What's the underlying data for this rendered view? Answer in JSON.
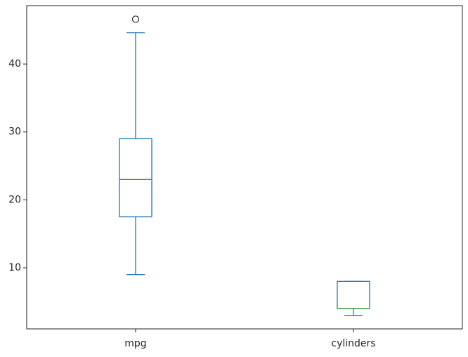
{
  "chart_data": {
    "type": "box",
    "categories": [
      "mpg",
      "cylinders"
    ],
    "boxes": [
      {
        "min": 9,
        "q1": 17.5,
        "median": 23,
        "q3": 29,
        "max": 44.6,
        "outliers": [
          46.6
        ]
      },
      {
        "min": 3,
        "q1": 4,
        "median": 4,
        "q3": 8,
        "max": 8,
        "outliers": []
      }
    ],
    "color": "#1f77b4",
    "median_color": "#2ca02c",
    "ylim": [
      1.0,
      48.6
    ],
    "yticks": [
      10,
      20,
      30,
      40
    ],
    "grid": false
  }
}
